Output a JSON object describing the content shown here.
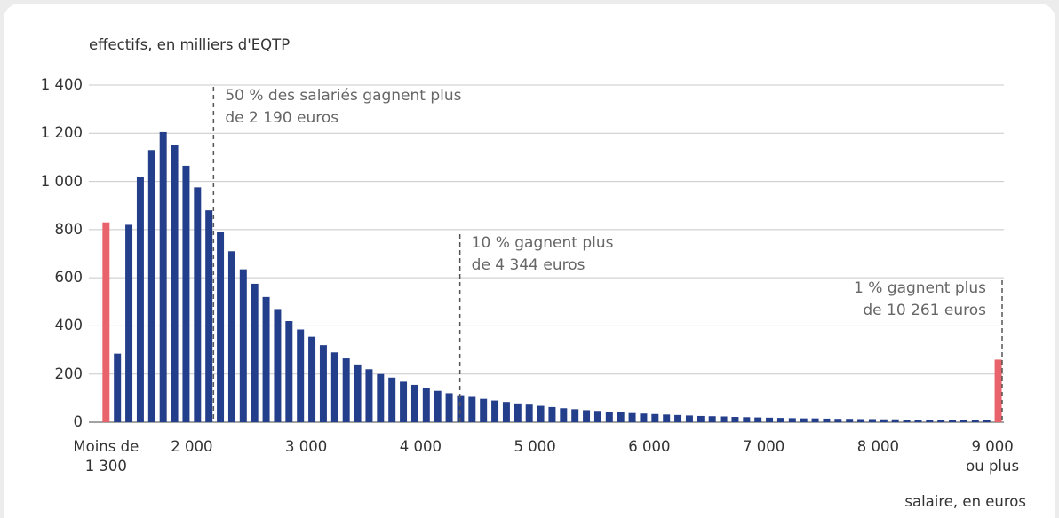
{
  "chart_data": {
    "type": "histogram",
    "y_axis_title": "effectifs, en milliers d'EQTP",
    "x_axis_title": "salaire, en euros",
    "bins": [
      1200,
      1300,
      1400,
      1500,
      1600,
      1700,
      1800,
      1900,
      2000,
      2100,
      2200,
      2300,
      2400,
      2500,
      2600,
      2700,
      2800,
      2900,
      3000,
      3100,
      3200,
      3300,
      3400,
      3500,
      3600,
      3700,
      3800,
      3900,
      4000,
      4100,
      4200,
      4300,
      4400,
      4500,
      4600,
      4700,
      4800,
      4900,
      5000,
      5100,
      5200,
      5300,
      5400,
      5500,
      5600,
      5700,
      5800,
      5900,
      6000,
      6100,
      6200,
      6300,
      6400,
      6500,
      6600,
      6700,
      6800,
      6900,
      7000,
      7100,
      7200,
      7300,
      7400,
      7500,
      7600,
      7700,
      7800,
      7900,
      8000,
      8100,
      8200,
      8300,
      8400,
      8500,
      8600,
      8700,
      8800,
      8900,
      9000,
      9100
    ],
    "values": [
      830,
      285,
      820,
      1020,
      1130,
      1205,
      1150,
      1065,
      975,
      880,
      790,
      710,
      635,
      575,
      520,
      470,
      420,
      385,
      355,
      320,
      290,
      265,
      240,
      220,
      200,
      185,
      168,
      155,
      142,
      130,
      120,
      112,
      105,
      97,
      90,
      84,
      78,
      73,
      68,
      63,
      58,
      54,
      50,
      47,
      44,
      41,
      38,
      36,
      34,
      32,
      30,
      28,
      26,
      25,
      24,
      22,
      21,
      20,
      19,
      18,
      17,
      16,
      16,
      15,
      14,
      14,
      13,
      13,
      12,
      12,
      11,
      11,
      10,
      10,
      10,
      9,
      9,
      9,
      260
    ],
    "color": "#233e8b",
    "open_end_color": "#e8636b",
    "xlim": [
      1100,
      9100
    ],
    "xticks": [
      {
        "value": 1250,
        "label": "Moins de\n1 300"
      },
      {
        "value": 2000,
        "label": "2 000"
      },
      {
        "value": 3000,
        "label": "3 000"
      },
      {
        "value": 4000,
        "label": "4 000"
      },
      {
        "value": 5000,
        "label": "5 000"
      },
      {
        "value": 6000,
        "label": "6 000"
      },
      {
        "value": 7000,
        "label": "7 000"
      },
      {
        "value": 8000,
        "label": "8 000"
      },
      {
        "value": 9000,
        "label": "9 000\nou plus"
      }
    ],
    "ylim": [
      0,
      1400
    ],
    "yticks": [
      0,
      200,
      400,
      600,
      800,
      {
        "value": 1000,
        "label": "1 000"
      },
      {
        "value": 1200,
        "label": "1 200"
      },
      {
        "value": 1400,
        "label": "1 400"
      }
    ],
    "grid": true,
    "annotations": [
      {
        "text": "50 % des salariés gagnent plus\nde 2 190 euros",
        "x": 2190
      },
      {
        "text": "10 % gagnent plus\nde 4 344 euros",
        "x": 4344
      },
      {
        "text": "1 % gagnent plus\nde 10 261 euros"
      }
    ]
  }
}
